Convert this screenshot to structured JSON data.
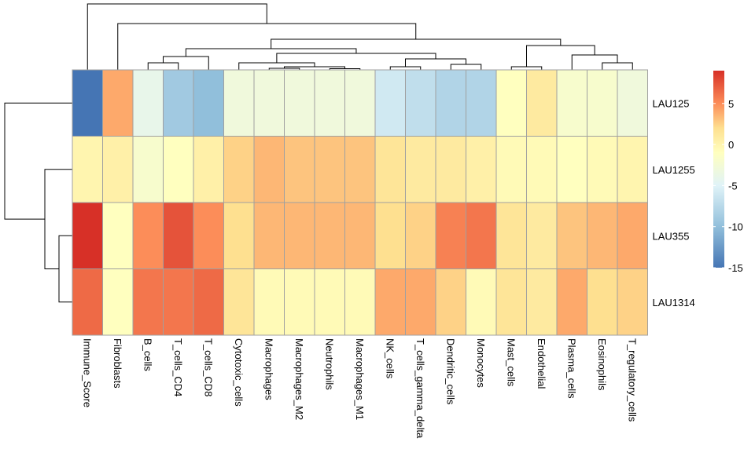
{
  "chart_data": {
    "type": "heatmap",
    "title": "",
    "rows": [
      "LAU125",
      "LAU1255",
      "LAU355",
      "LAU1314"
    ],
    "columns": [
      "Immune_Score",
      "Fibroblasts",
      "B_cells",
      "T_cells_CD4",
      "T_cells_CD8",
      "Cytotoxic_cells",
      "Macrophages",
      "Macrophages_M2",
      "Neutrophils",
      "Macrophages_M1",
      "NK_cells",
      "T_cells_gamma_delta",
      "Dendritic_cells",
      "Monocytes",
      "Mast_cells",
      "Endothelial",
      "Plasma_cells",
      "Eosinophils",
      "T_regulatory_cells"
    ],
    "values": [
      [
        -15,
        4,
        -4,
        -9,
        -10,
        -3,
        -3,
        -3,
        -3,
        -3,
        -6,
        -7,
        -8,
        -8,
        -1,
        1,
        -2,
        -2,
        -3
      ],
      [
        0,
        0.5,
        -2,
        -1,
        0.5,
        2.5,
        3.5,
        3,
        3,
        3,
        1.5,
        1,
        1,
        0.5,
        -0.5,
        -0.5,
        -1,
        -0.5,
        0
      ],
      [
        9,
        -1,
        5,
        7.5,
        5,
        2,
        3.5,
        3.5,
        3.5,
        3.5,
        2,
        2.5,
        5.5,
        6,
        1.5,
        1,
        3,
        3.5,
        4
      ],
      [
        6.5,
        -1,
        6,
        6,
        6.5,
        1.5,
        -0.5,
        -0.5,
        -0.5,
        -0.5,
        4,
        4,
        2.5,
        -0.5,
        1.5,
        1,
        4,
        2,
        2.5
      ]
    ],
    "color_scale": {
      "min": -15,
      "max": 9,
      "low_color": "#4575B4",
      "mid_color": "#FFFFBF",
      "high_color": "#D73027",
      "ticks": [
        5,
        0,
        -5,
        -10,
        -15
      ]
    },
    "column_dendrogram": true,
    "row_dendrogram": true,
    "grid_color": "#A0A0A0"
  }
}
